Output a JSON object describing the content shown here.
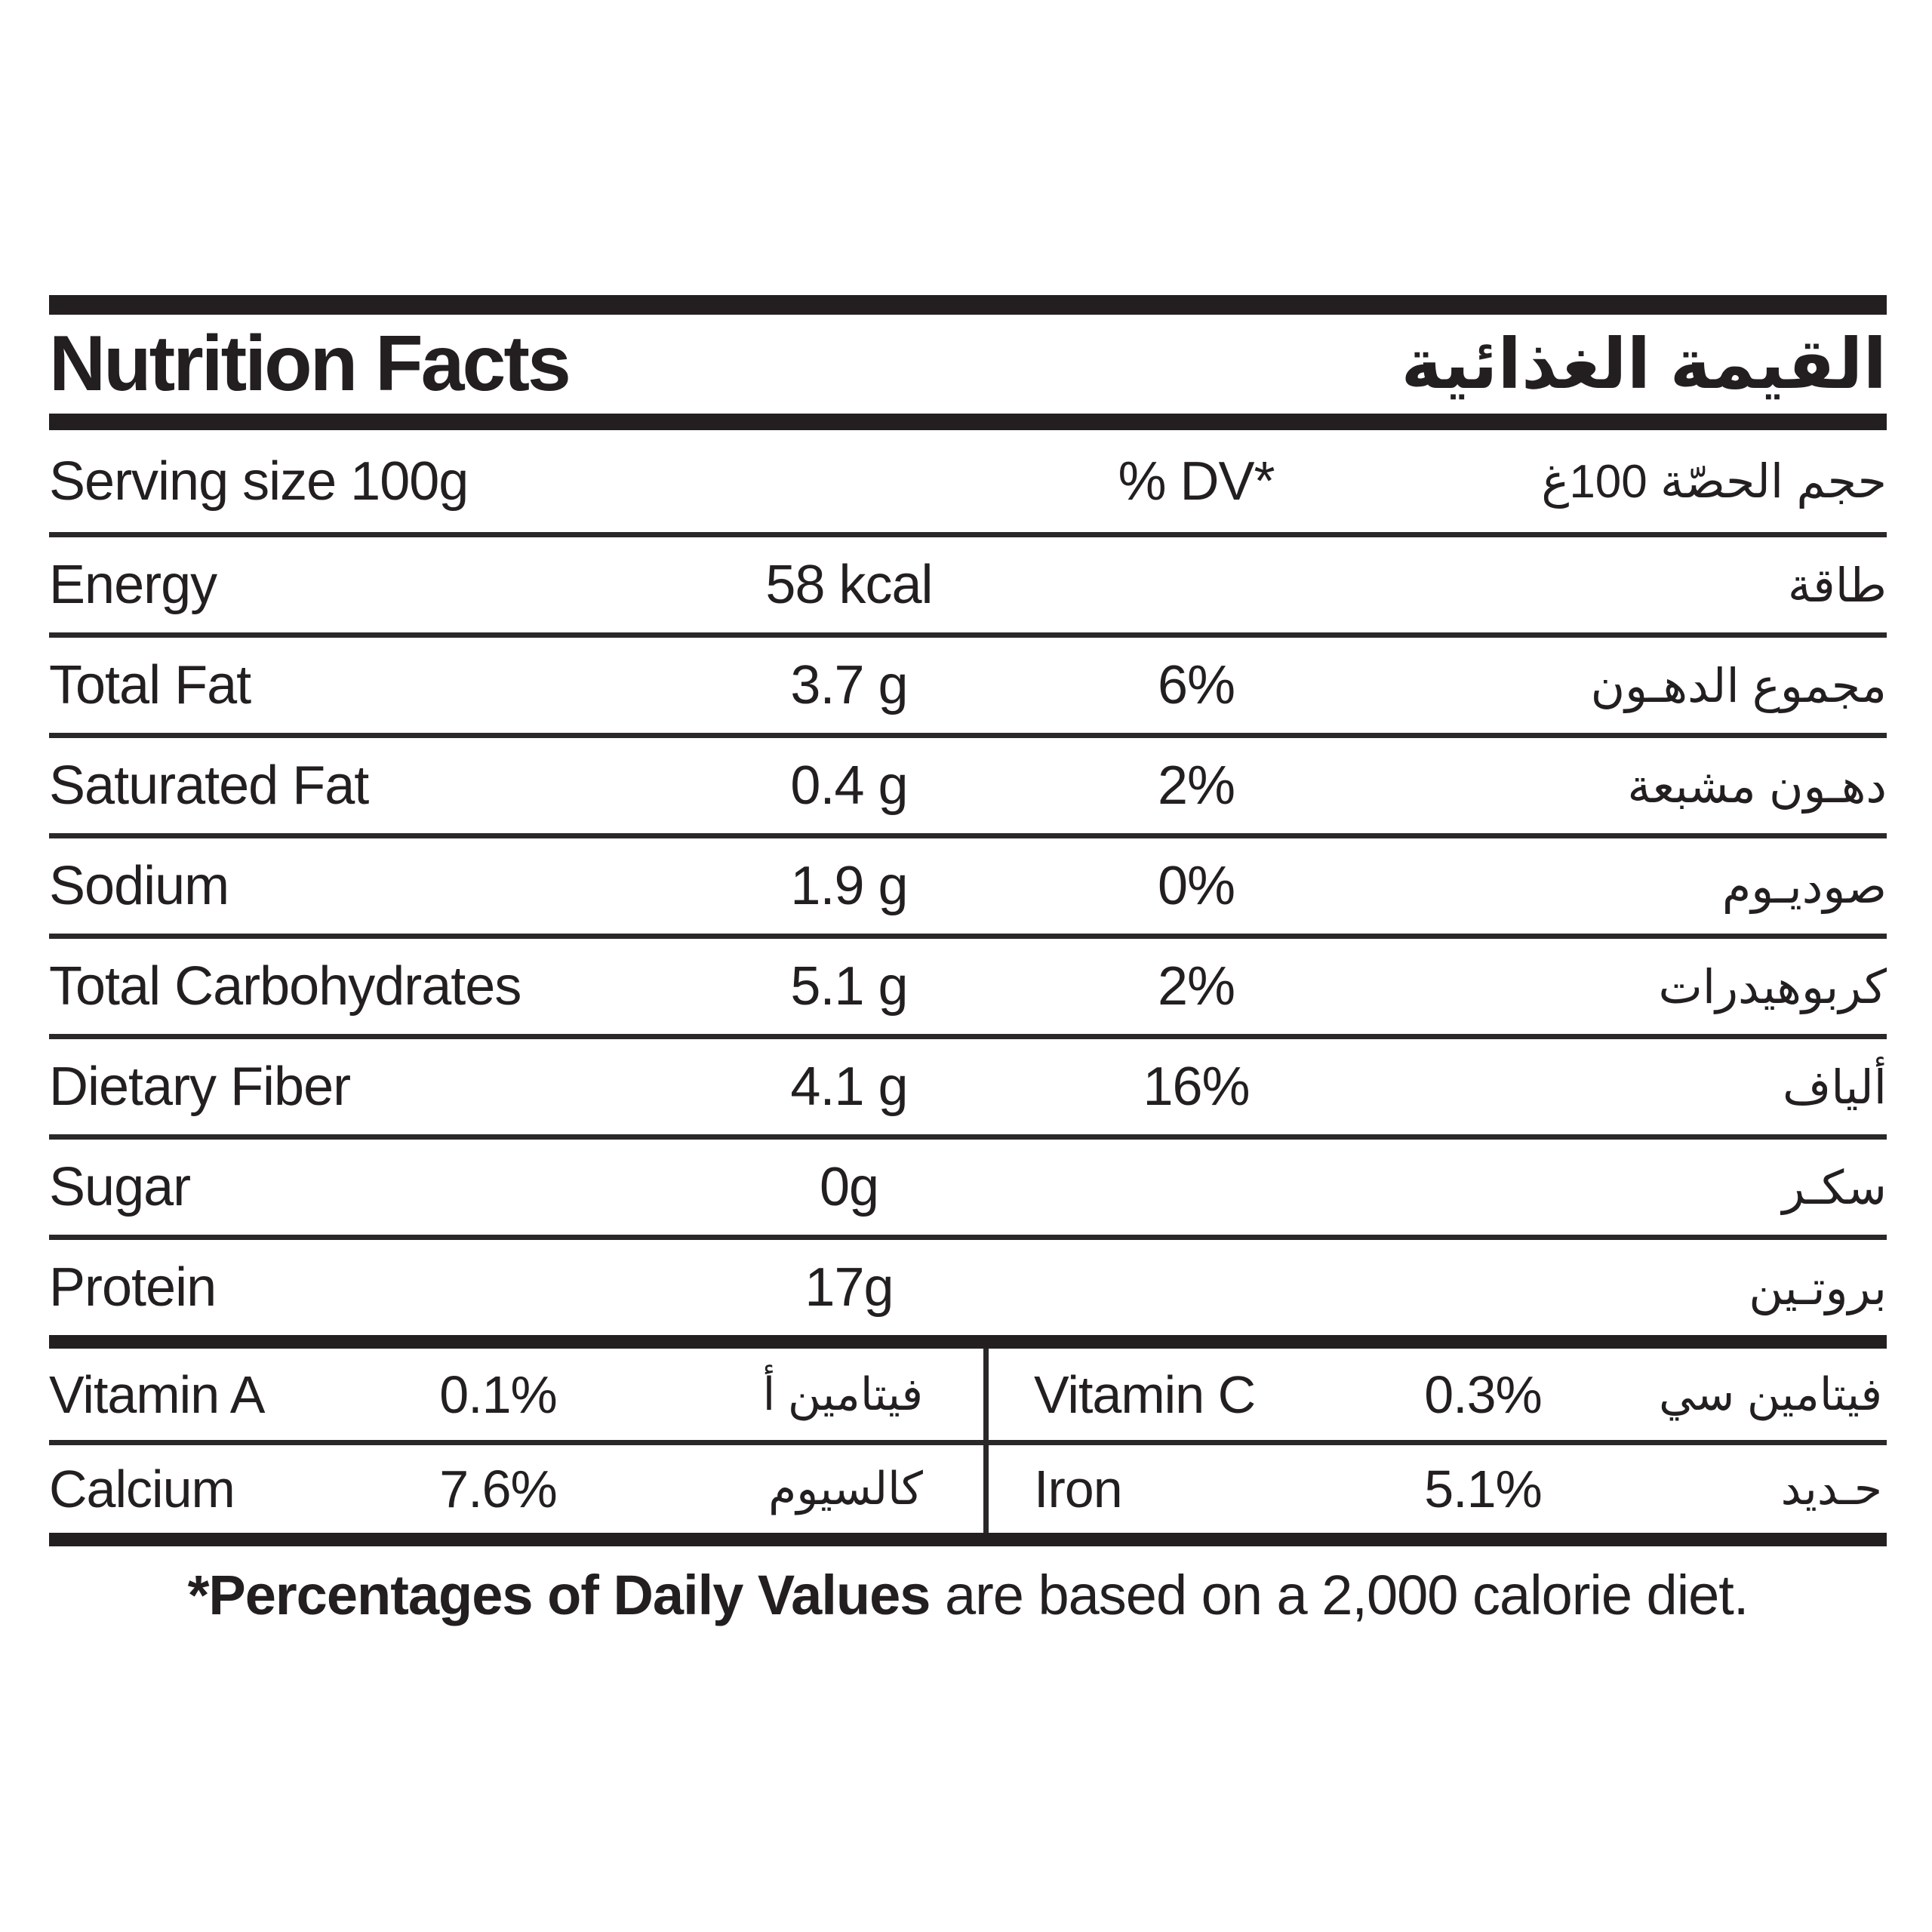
{
  "header": {
    "title_en": "Nutrition Facts",
    "title_ar": "القيمة الغذائية"
  },
  "serving": {
    "label_en": "Serving size 100g",
    "dv_header": "% DV*",
    "label_ar": "حجم الحصّة 100غ"
  },
  "rows": [
    {
      "en": "Energy",
      "amount": "58 kcal",
      "dv": "",
      "ar": "طاقة"
    },
    {
      "en": "Total Fat",
      "amount": "3.7 g",
      "dv": "6%",
      "ar": "مجموع الدهـون"
    },
    {
      "en": "Saturated Fat",
      "amount": "0.4 g",
      "dv": "2%",
      "ar": "دهـون مشبعة"
    },
    {
      "en": "Sodium",
      "amount": "1.9 g",
      "dv": "0%",
      "ar": "صوديـوم"
    },
    {
      "en": "Total Carbohydrates",
      "amount": "5.1 g",
      "dv": "2%",
      "ar": "كربوهيدرات"
    },
    {
      "en": "Dietary Fiber",
      "amount": "4.1 g",
      "dv": "16%",
      "ar": "ألياف"
    },
    {
      "en": "Sugar",
      "amount": "0g",
      "dv": "",
      "ar": "سكـر"
    },
    {
      "en": "Protein",
      "amount": "17g",
      "dv": "",
      "ar": "بروتـين"
    }
  ],
  "micros": {
    "left": [
      {
        "en": "Vitamin A",
        "value": "0.1%",
        "ar": "فيتامين أ"
      },
      {
        "en": "Calcium",
        "value": "7.6%",
        "ar": "كالسيوم"
      }
    ],
    "right": [
      {
        "en": "Vitamin C",
        "value": "0.3%",
        "ar": "فيتامين سي"
      },
      {
        "en": "Iron",
        "value": "5.1%",
        "ar": "حـديد"
      }
    ]
  },
  "footnote": {
    "bold": "*Percentages of Daily Values",
    "rest": " are based on a 2,000 calorie diet."
  },
  "colors": {
    "ink": "#231f20",
    "rule": "#2b2829",
    "background": "#ffffff"
  }
}
